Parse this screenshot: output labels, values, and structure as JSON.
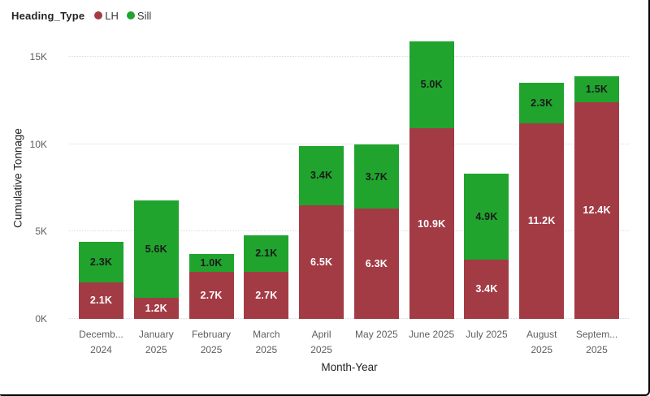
{
  "legend": {
    "title": "Heading_Type",
    "items": [
      {
        "label": "LH",
        "color": "#a33b45"
      },
      {
        "label": "Sill",
        "color": "#20a42e"
      }
    ]
  },
  "axes": {
    "y_title": "Cumulative Tonnage",
    "x_title": "Month-Year"
  },
  "chart_data": {
    "type": "bar",
    "stacked": true,
    "title": "",
    "xlabel": "Month-Year",
    "ylabel": "Cumulative Tonnage",
    "legend_position": "top-left",
    "grid": "horizontal-dotted",
    "ylim": [
      0,
      16.16
    ],
    "yticks": [
      {
        "label": "0K",
        "value": 0
      },
      {
        "label": "5K",
        "value": 5
      },
      {
        "label": "10K",
        "value": 10
      },
      {
        "label": "15K",
        "value": 15
      }
    ],
    "categories": [
      {
        "line1": "Decemb...",
        "line2": "2024"
      },
      {
        "line1": "January",
        "line2": "2025"
      },
      {
        "line1": "February",
        "line2": "2025"
      },
      {
        "line1": "March",
        "line2": "2025"
      },
      {
        "line1": "April",
        "line2": "2025"
      },
      {
        "line1": "May 2025",
        "line2": ""
      },
      {
        "line1": "June 2025",
        "line2": ""
      },
      {
        "line1": "July 2025",
        "line2": ""
      },
      {
        "line1": "August",
        "line2": "2025"
      },
      {
        "line1": "Septem...",
        "line2": "2025"
      }
    ],
    "series": [
      {
        "name": "LH",
        "color": "#a33b45",
        "label_color": "#ffffff",
        "values": [
          2.1,
          1.2,
          2.7,
          2.7,
          6.5,
          6.3,
          10.9,
          3.4,
          11.2,
          12.4
        ],
        "labels": [
          "2.1K",
          "1.2K",
          "2.7K",
          "2.7K",
          "6.5K",
          "6.3K",
          "10.9K",
          "3.4K",
          "11.2K",
          "12.4K"
        ]
      },
      {
        "name": "Sill",
        "color": "#20a42e",
        "label_color": "#1a1a1a",
        "values": [
          2.3,
          5.6,
          1.0,
          2.1,
          3.4,
          3.7,
          5.0,
          4.9,
          2.3,
          1.5
        ],
        "labels": [
          "2.3K",
          "5.6K",
          "1.0K",
          "2.1K",
          "3.4K",
          "3.7K",
          "5.0K",
          "4.9K",
          "2.3K",
          "1.5K"
        ]
      }
    ]
  }
}
